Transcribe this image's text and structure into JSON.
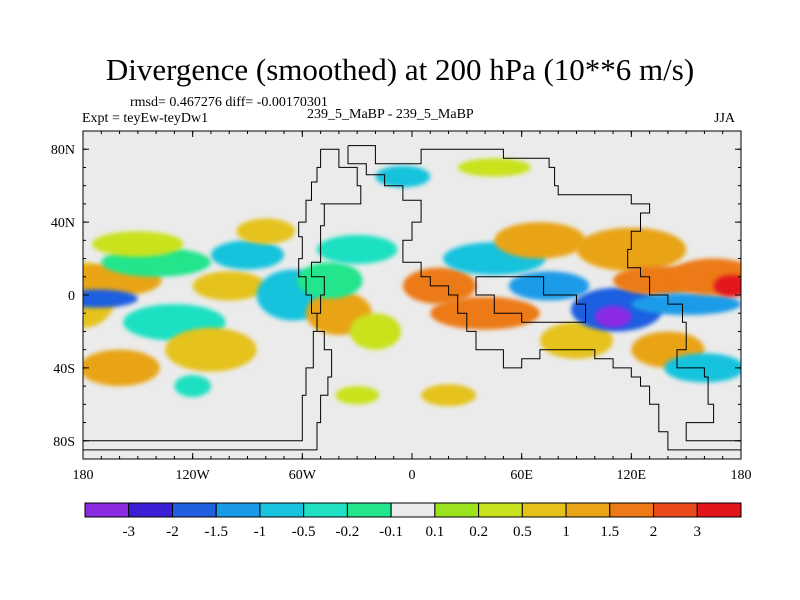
{
  "chart_data": {
    "type": "contour-map",
    "title": "Divergence (smoothed) at 200 hPa (10**6 m/s)",
    "stats_label": "rmsd= 0.467276 diff= -0.00170301",
    "experiment_label": "Expt = teyEw-teyDw1",
    "comparison_label": "239_5_MaBP - 239_5_MaBP",
    "season_label": "JJA",
    "xlim": [
      -180,
      180
    ],
    "ylim": [
      -90,
      90
    ],
    "x_ticks": [
      {
        "value": -180,
        "label": "180"
      },
      {
        "value": -120,
        "label": "120W"
      },
      {
        "value": -60,
        "label": "60W"
      },
      {
        "value": 0,
        "label": "0"
      },
      {
        "value": 60,
        "label": "60E"
      },
      {
        "value": 120,
        "label": "120E"
      },
      {
        "value": 180,
        "label": "180"
      }
    ],
    "y_ticks": [
      {
        "value": 80,
        "label": "80N"
      },
      {
        "value": 40,
        "label": "40N"
      },
      {
        "value": 0,
        "label": "0"
      },
      {
        "value": -40,
        "label": "40S"
      },
      {
        "value": -80,
        "label": "80S"
      }
    ],
    "colorbar": {
      "colors": [
        "#8a2be2",
        "#3a1fd6",
        "#1f5fe0",
        "#1a9be8",
        "#17c3dd",
        "#1fe0c2",
        "#23e58c",
        "#ebebeb",
        "#9be21f",
        "#c9e21f",
        "#e5c21a",
        "#e9a418",
        "#ec7a17",
        "#ea4a1a",
        "#e2141c"
      ],
      "labels": [
        "-3",
        "-2",
        "-1.5",
        "-1",
        "-0.5",
        "-0.2",
        "-0.1",
        "0.1",
        "0.2",
        "0.5",
        "1",
        "1.5",
        "2",
        "3"
      ]
    },
    "features": [
      {
        "lon": -180,
        "lat": 0,
        "rx": 18,
        "ry": 18,
        "level": 10
      },
      {
        "lon": -180,
        "lat": 4,
        "rx": 8,
        "ry": 6,
        "level": 13
      },
      {
        "lon": -165,
        "lat": 8,
        "rx": 28,
        "ry": 9,
        "level": 11
      },
      {
        "lon": -172,
        "lat": -2,
        "rx": 22,
        "ry": 5,
        "level": 2
      },
      {
        "lon": -140,
        "lat": 18,
        "rx": 30,
        "ry": 8,
        "level": 6
      },
      {
        "lon": -150,
        "lat": 28,
        "rx": 25,
        "ry": 7,
        "level": 9
      },
      {
        "lon": -130,
        "lat": -15,
        "rx": 28,
        "ry": 10,
        "level": 5
      },
      {
        "lon": -110,
        "lat": -30,
        "rx": 25,
        "ry": 12,
        "level": 10
      },
      {
        "lon": -100,
        "lat": 5,
        "rx": 20,
        "ry": 8,
        "level": 10
      },
      {
        "lon": -90,
        "lat": 22,
        "rx": 20,
        "ry": 8,
        "level": 4
      },
      {
        "lon": -80,
        "lat": 35,
        "rx": 16,
        "ry": 7,
        "level": 10
      },
      {
        "lon": -65,
        "lat": 0,
        "rx": 20,
        "ry": 14,
        "level": 4
      },
      {
        "lon": -40,
        "lat": -10,
        "rx": 18,
        "ry": 12,
        "level": 11
      },
      {
        "lon": -45,
        "lat": 8,
        "rx": 18,
        "ry": 10,
        "level": 6
      },
      {
        "lon": -30,
        "lat": 25,
        "rx": 22,
        "ry": 8,
        "level": 5
      },
      {
        "lon": -20,
        "lat": -20,
        "rx": 14,
        "ry": 10,
        "level": 9
      },
      {
        "lon": 15,
        "lat": 5,
        "rx": 20,
        "ry": 10,
        "level": 12
      },
      {
        "lon": 40,
        "lat": -10,
        "rx": 30,
        "ry": 9,
        "level": 12
      },
      {
        "lon": 45,
        "lat": 20,
        "rx": 28,
        "ry": 9,
        "level": 4
      },
      {
        "lon": 70,
        "lat": 30,
        "rx": 25,
        "ry": 10,
        "level": 11
      },
      {
        "lon": 75,
        "lat": 5,
        "rx": 22,
        "ry": 8,
        "level": 3
      },
      {
        "lon": 90,
        "lat": -25,
        "rx": 20,
        "ry": 10,
        "level": 10
      },
      {
        "lon": 112,
        "lat": -8,
        "rx": 25,
        "ry": 12,
        "level": 2
      },
      {
        "lon": 110,
        "lat": -12,
        "rx": 10,
        "ry": 6,
        "level": 0
      },
      {
        "lon": 120,
        "lat": 25,
        "rx": 30,
        "ry": 12,
        "level": 11
      },
      {
        "lon": 135,
        "lat": 8,
        "rx": 25,
        "ry": 8,
        "level": 12
      },
      {
        "lon": 150,
        "lat": -5,
        "rx": 30,
        "ry": 6,
        "level": 3
      },
      {
        "lon": 165,
        "lat": 10,
        "rx": 25,
        "ry": 10,
        "level": 12
      },
      {
        "lon": 175,
        "lat": 5,
        "rx": 10,
        "ry": 6,
        "level": 14
      },
      {
        "lon": 140,
        "lat": -30,
        "rx": 20,
        "ry": 10,
        "level": 11
      },
      {
        "lon": 160,
        "lat": -40,
        "rx": 22,
        "ry": 8,
        "level": 4
      },
      {
        "lon": -160,
        "lat": -40,
        "rx": 22,
        "ry": 10,
        "level": 11
      },
      {
        "lon": -5,
        "lat": 65,
        "rx": 15,
        "ry": 6,
        "level": 4
      },
      {
        "lon": 45,
        "lat": 70,
        "rx": 20,
        "ry": 5,
        "level": 9
      },
      {
        "lon": -30,
        "lat": -55,
        "rx": 12,
        "ry": 5,
        "level": 9
      },
      {
        "lon": 20,
        "lat": -55,
        "rx": 15,
        "ry": 6,
        "level": 10
      },
      {
        "lon": -120,
        "lat": -50,
        "rx": 10,
        "ry": 6,
        "level": 5
      }
    ],
    "continent_outlines": [
      {
        "name": "western-continent",
        "points": [
          [
            -50,
            80
          ],
          [
            -42,
            80
          ],
          [
            -40,
            70
          ],
          [
            -30,
            70
          ],
          [
            -30,
            60
          ],
          [
            -28,
            50
          ],
          [
            -50,
            50
          ],
          [
            -48,
            38
          ],
          [
            -50,
            30
          ],
          [
            -50,
            18
          ],
          [
            -55,
            10
          ],
          [
            -48,
            0
          ],
          [
            -50,
            -10
          ],
          [
            -52,
            -20
          ],
          [
            -54,
            -40
          ],
          [
            -58,
            -55
          ],
          [
            -60,
            -65
          ],
          [
            -60,
            -80
          ],
          [
            -180,
            -80
          ],
          [
            -180,
            -85
          ],
          [
            -56,
            -85
          ],
          [
            -52,
            -70
          ],
          [
            -50,
            -55
          ],
          [
            -46,
            -45
          ],
          [
            -44,
            -30
          ],
          [
            -48,
            -20
          ],
          [
            -52,
            -10
          ],
          [
            -55,
            0
          ],
          [
            -58,
            10
          ],
          [
            -62,
            20
          ],
          [
            -60,
            32
          ],
          [
            -62,
            40
          ],
          [
            -58,
            52
          ],
          [
            -55,
            62
          ],
          [
            -52,
            70
          ],
          [
            -50,
            80
          ]
        ]
      },
      {
        "name": "eastern-continent",
        "points": [
          [
            -35,
            82
          ],
          [
            -20,
            82
          ],
          [
            -20,
            72
          ],
          [
            0,
            72
          ],
          [
            5,
            80
          ],
          [
            40,
            80
          ],
          [
            50,
            75
          ],
          [
            70,
            75
          ],
          [
            75,
            70
          ],
          [
            78,
            60
          ],
          [
            80,
            55
          ],
          [
            110,
            55
          ],
          [
            120,
            50
          ],
          [
            130,
            45
          ],
          [
            125,
            35
          ],
          [
            120,
            25
          ],
          [
            118,
            15
          ],
          [
            125,
            10
          ],
          [
            130,
            0
          ],
          [
            140,
            -5
          ],
          [
            148,
            -15
          ],
          [
            150,
            -30
          ],
          [
            145,
            -40
          ],
          [
            160,
            -45
          ],
          [
            162,
            -60
          ],
          [
            165,
            -70
          ],
          [
            150,
            -75
          ],
          [
            150,
            -80
          ],
          [
            180,
            -80
          ],
          [
            180,
            -85
          ],
          [
            145,
            -85
          ],
          [
            140,
            -75
          ],
          [
            135,
            -60
          ],
          [
            130,
            -50
          ],
          [
            125,
            -45
          ],
          [
            120,
            -40
          ],
          [
            110,
            -35
          ],
          [
            100,
            -30
          ],
          [
            90,
            -30
          ],
          [
            70,
            -35
          ],
          [
            60,
            -40
          ],
          [
            50,
            -30
          ],
          [
            35,
            -20
          ],
          [
            30,
            -10
          ],
          [
            25,
            0
          ],
          [
            20,
            5
          ],
          [
            10,
            10
          ],
          [
            5,
            18
          ],
          [
            -5,
            30
          ],
          [
            0,
            40
          ],
          [
            5,
            52
          ],
          [
            -5,
            60
          ],
          [
            -15,
            66
          ],
          [
            -25,
            72
          ],
          [
            -35,
            82
          ]
        ]
      },
      {
        "name": "inner-basin",
        "points": [
          [
            35,
            10
          ],
          [
            60,
            10
          ],
          [
            72,
            0
          ],
          [
            90,
            -5
          ],
          [
            95,
            -15
          ],
          [
            80,
            -15
          ],
          [
            60,
            -10
          ],
          [
            45,
            0
          ],
          [
            35,
            10
          ]
        ]
      }
    ]
  }
}
